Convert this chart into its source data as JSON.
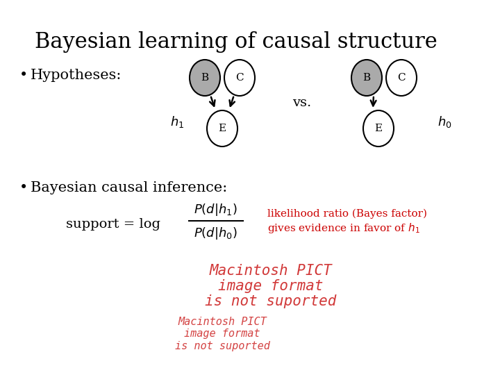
{
  "title": "Bayesian learning of causal structure",
  "title_fontsize": 22,
  "bg_color": "#ffffff",
  "text_color": "#000000",
  "red_color": "#cc0000",
  "bullet1": "Hypotheses:",
  "bullet2": "Bayesian causal inference:",
  "vs_text": "vs.",
  "h1_label": "$h_1$",
  "h0_label": "$h_0$",
  "support_text": "support = log",
  "numerator": "$P(d|h_1)$",
  "denominator": "$P(d|h_0)$",
  "likelihood_line1": "likelihood ratio (Bayes factor)",
  "likelihood_line2": "gives evidence in favor of $h_1$",
  "mac1_line1": "Macintosh PICT",
  "mac1_line2": "image format",
  "mac1_line3": "is not suported",
  "mac2_line1": "Macintosh PICT",
  "mac2_line2": "image format",
  "mac2_line3": "is not suported",
  "gray_fill": "#aaaaaa",
  "white_fill": "#ffffff",
  "node_edge_color": "#000000"
}
